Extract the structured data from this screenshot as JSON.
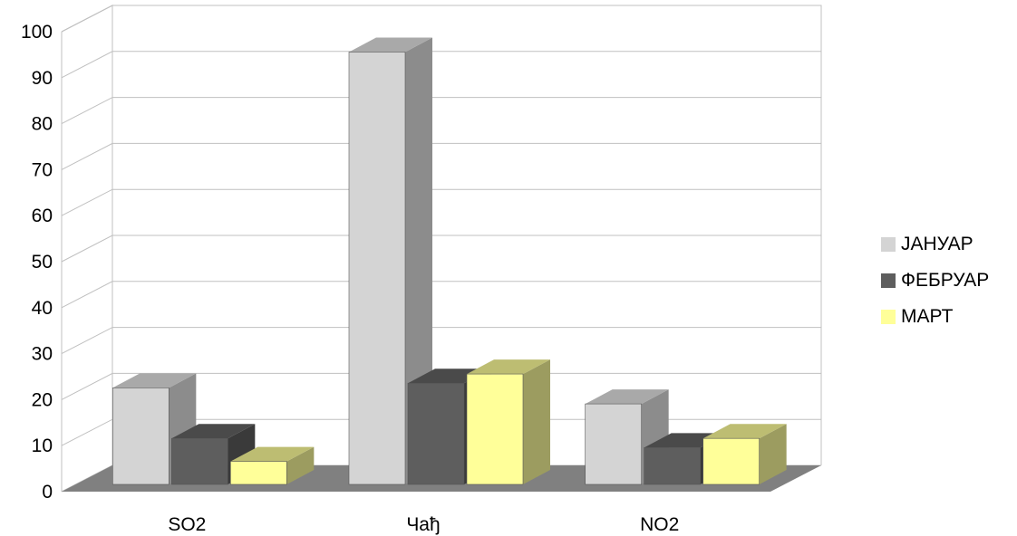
{
  "chart_data": {
    "type": "bar",
    "categories": [
      "SO2",
      "Чађ",
      "NO2"
    ],
    "series": [
      {
        "name": "ЈАНУАР",
        "values": [
          21,
          94,
          17.5
        ]
      },
      {
        "name": "ФЕБРУАР",
        "values": [
          10,
          22,
          8
        ]
      },
      {
        "name": "МАРТ",
        "values": [
          5,
          24,
          10
        ]
      }
    ],
    "ylim": [
      0,
      100
    ],
    "yticks": [
      "0",
      "10",
      "20",
      "30",
      "40",
      "50",
      "60",
      "70",
      "80",
      "90",
      "100"
    ],
    "grid": true,
    "legend_position": "right",
    "three_d": true,
    "colors": {
      "series": [
        "#d4d4d4",
        "#5e5e5e",
        "#ffff99"
      ],
      "series_side": [
        "#8c8c8c",
        "#3a3a3a",
        "#9c9c60"
      ],
      "series_top": [
        "#a9a9a9",
        "#4a4a4a",
        "#bdbd72"
      ],
      "floor": "#808080",
      "grid": "#c0c0c0"
    }
  }
}
